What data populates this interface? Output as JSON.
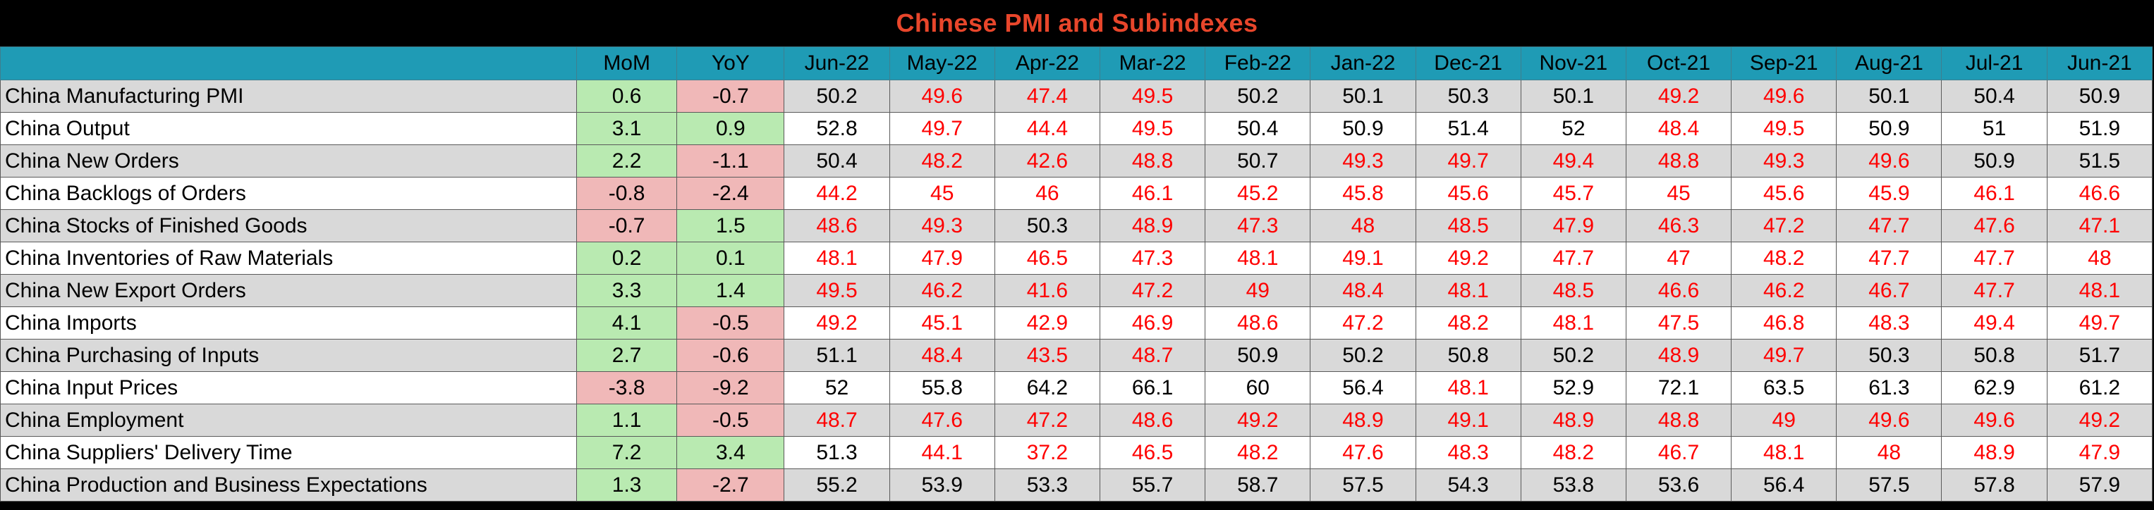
{
  "title": "Chinese PMI and Subindexes",
  "colors": {
    "title": "#e8462b",
    "header_bg": "#1f9bb5",
    "row_gray": "#d9d9d9",
    "row_white": "#ffffff",
    "positive_change_bg": "#b9eab1",
    "negative_change_bg": "#f0b8b8",
    "below_50_text": "#ff0000",
    "at_or_above_50_text": "#000000"
  },
  "chart_data": {
    "type": "table",
    "columns": [
      "MoM",
      "YoY",
      "Jun-22",
      "May-22",
      "Apr-22",
      "Mar-22",
      "Feb-22",
      "Jan-22",
      "Dec-21",
      "Nov-21",
      "Oct-21",
      "Sep-21",
      "Aug-21",
      "Jul-21",
      "Jun-21"
    ],
    "rows": [
      {
        "label": "China Manufacturing PMI",
        "mom": "0.6",
        "yoy": "-0.7",
        "values": [
          "50.2",
          "49.6",
          "47.4",
          "49.5",
          "50.2",
          "50.1",
          "50.3",
          "50.1",
          "49.2",
          "49.6",
          "50.1",
          "50.4",
          "50.9"
        ]
      },
      {
        "label": "China Output",
        "mom": "3.1",
        "yoy": "0.9",
        "values": [
          "52.8",
          "49.7",
          "44.4",
          "49.5",
          "50.4",
          "50.9",
          "51.4",
          "52",
          "48.4",
          "49.5",
          "50.9",
          "51",
          "51.9"
        ]
      },
      {
        "label": "China New Orders",
        "mom": "2.2",
        "yoy": "-1.1",
        "values": [
          "50.4",
          "48.2",
          "42.6",
          "48.8",
          "50.7",
          "49.3",
          "49.7",
          "49.4",
          "48.8",
          "49.3",
          "49.6",
          "50.9",
          "51.5"
        ]
      },
      {
        "label": "China Backlogs of Orders",
        "mom": "-0.8",
        "yoy": "-2.4",
        "values": [
          "44.2",
          "45",
          "46",
          "46.1",
          "45.2",
          "45.8",
          "45.6",
          "45.7",
          "45",
          "45.6",
          "45.9",
          "46.1",
          "46.6"
        ]
      },
      {
        "label": "China Stocks of Finished Goods",
        "mom": "-0.7",
        "yoy": "1.5",
        "values": [
          "48.6",
          "49.3",
          "50.3",
          "48.9",
          "47.3",
          "48",
          "48.5",
          "47.9",
          "46.3",
          "47.2",
          "47.7",
          "47.6",
          "47.1"
        ]
      },
      {
        "label": "China Inventories of Raw Materials",
        "mom": "0.2",
        "yoy": "0.1",
        "values": [
          "48.1",
          "47.9",
          "46.5",
          "47.3",
          "48.1",
          "49.1",
          "49.2",
          "47.7",
          "47",
          "48.2",
          "47.7",
          "47.7",
          "48"
        ]
      },
      {
        "label": "China New Export Orders",
        "mom": "3.3",
        "yoy": "1.4",
        "values": [
          "49.5",
          "46.2",
          "41.6",
          "47.2",
          "49",
          "48.4",
          "48.1",
          "48.5",
          "46.6",
          "46.2",
          "46.7",
          "47.7",
          "48.1"
        ]
      },
      {
        "label": "China Imports",
        "mom": "4.1",
        "yoy": "-0.5",
        "values": [
          "49.2",
          "45.1",
          "42.9",
          "46.9",
          "48.6",
          "47.2",
          "48.2",
          "48.1",
          "47.5",
          "46.8",
          "48.3",
          "49.4",
          "49.7"
        ]
      },
      {
        "label": "China Purchasing of Inputs",
        "mom": "2.7",
        "yoy": "-0.6",
        "values": [
          "51.1",
          "48.4",
          "43.5",
          "48.7",
          "50.9",
          "50.2",
          "50.8",
          "50.2",
          "48.9",
          "49.7",
          "50.3",
          "50.8",
          "51.7"
        ]
      },
      {
        "label": "China Input Prices",
        "mom": "-3.8",
        "yoy": "-9.2",
        "values": [
          "52",
          "55.8",
          "64.2",
          "66.1",
          "60",
          "56.4",
          "48.1",
          "52.9",
          "72.1",
          "63.5",
          "61.3",
          "62.9",
          "61.2"
        ]
      },
      {
        "label": "China Employment",
        "mom": "1.1",
        "yoy": "-0.5",
        "values": [
          "48.7",
          "47.6",
          "47.2",
          "48.6",
          "49.2",
          "48.9",
          "49.1",
          "48.9",
          "48.8",
          "49",
          "49.6",
          "49.6",
          "49.2"
        ]
      },
      {
        "label": "China Suppliers' Delivery Time",
        "mom": "7.2",
        "yoy": "3.4",
        "values": [
          "51.3",
          "44.1",
          "37.2",
          "46.5",
          "48.2",
          "47.6",
          "48.3",
          "48.2",
          "46.7",
          "48.1",
          "48",
          "48.9",
          "47.9"
        ]
      },
      {
        "label": "China Production and Business Expectations",
        "mom": "1.3",
        "yoy": "-2.7",
        "values": [
          "55.2",
          "53.9",
          "53.3",
          "55.7",
          "58.7",
          "57.5",
          "54.3",
          "53.8",
          "53.6",
          "56.4",
          "57.5",
          "57.8",
          "57.9"
        ]
      }
    ]
  }
}
